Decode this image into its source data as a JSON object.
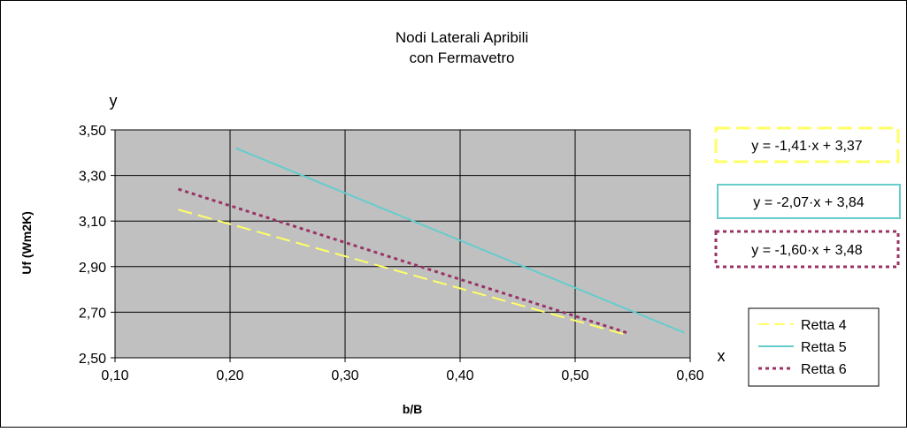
{
  "chart_data": {
    "type": "line",
    "title_lines": [
      "Nodi Laterali Apribili",
      "con Fermavetro"
    ],
    "xlabel": "b/B",
    "ylabel": "Uf (Wm2K)",
    "x_axis_letter": "x",
    "y_axis_letter": "y",
    "xlim": [
      0.1,
      0.6
    ],
    "ylim": [
      2.5,
      3.5
    ],
    "x_ticks": [
      0.1,
      0.2,
      0.3,
      0.4,
      0.5,
      0.6
    ],
    "x_tick_labels": [
      "0,10",
      "0,20",
      "0,30",
      "0,40",
      "0,50",
      "0,60"
    ],
    "y_ticks": [
      2.5,
      2.7,
      2.9,
      3.1,
      3.3,
      3.5
    ],
    "y_tick_labels": [
      "2,50",
      "2,70",
      "2,90",
      "3,10",
      "3,30",
      "3,50"
    ],
    "grid": true,
    "plot_background": "#c0c0c0",
    "legend_position": "right",
    "series": [
      {
        "name": "Retta 4",
        "color": "#ffff66",
        "style": "dashed",
        "x": [
          0.155,
          0.545
        ],
        "y": [
          3.15,
          2.6
        ],
        "equation": "y = -1,41·x + 3,37"
      },
      {
        "name": "Retta 5",
        "color": "#66cccc",
        "style": "solid",
        "x": [
          0.205,
          0.595
        ],
        "y": [
          3.42,
          2.61
        ],
        "equation": "y = -2,07·x + 3,84"
      },
      {
        "name": "Retta 6",
        "color": "#993366",
        "style": "dotted",
        "x": [
          0.155,
          0.545
        ],
        "y": [
          3.24,
          2.61
        ],
        "equation": "y = -1,60·x + 3,48"
      }
    ]
  }
}
